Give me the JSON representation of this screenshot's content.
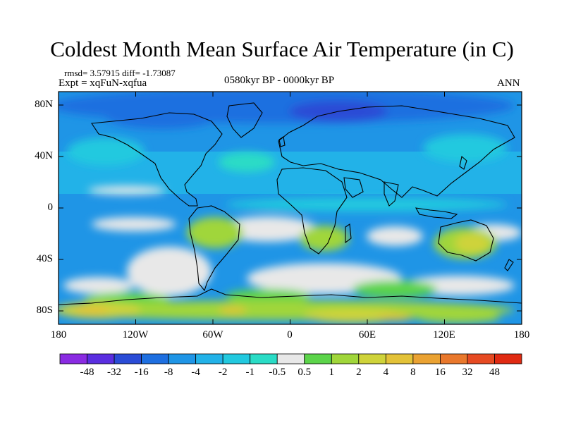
{
  "title": "Coldest Month Mean Surface Air Temperature (in C)",
  "stats": "rmsd= 3.57915 diff= -1.73087",
  "experiment": "Expt = xqFuN-xqfua",
  "period": "0580kyr BP - 0000kyr BP",
  "season": "ANN",
  "lat_ticks": [
    "80N",
    "40N",
    "0",
    "40S",
    "80S"
  ],
  "lon_ticks": [
    "180",
    "120W",
    "60W",
    "0",
    "60E",
    "120E",
    "180"
  ],
  "colorbar": {
    "labels": [
      "-48",
      "-32",
      "-16",
      "-8",
      "-4",
      "-2",
      "-1",
      "-0.5",
      "0.5",
      "1",
      "2",
      "4",
      "8",
      "16",
      "32",
      "48"
    ],
    "colors": [
      "#8a2be2",
      "#5a2ee0",
      "#2a4cd6",
      "#1e6fe0",
      "#1f95e6",
      "#22b2e8",
      "#22c9df",
      "#2adcc6",
      "#e8e8e8",
      "#5cd44a",
      "#a0d63a",
      "#cfd33a",
      "#e3c238",
      "#eaa232",
      "#e9782c",
      "#e64a22",
      "#e02a12"
    ]
  },
  "colors": {
    "land_outline": "#000000",
    "neutral": "#e8e8e8"
  }
}
